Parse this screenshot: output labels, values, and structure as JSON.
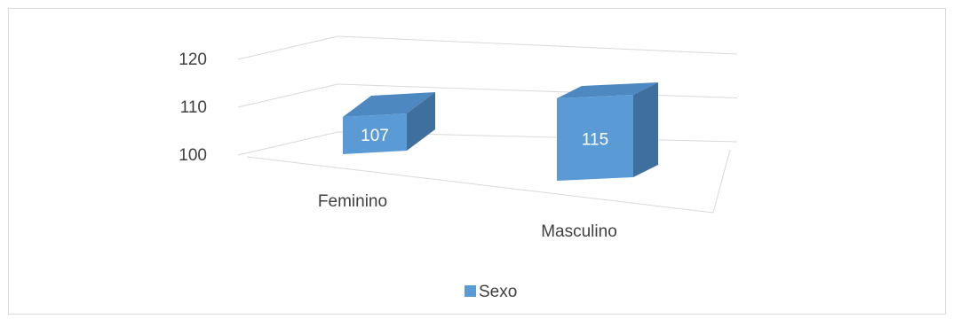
{
  "chart_data": {
    "type": "bar",
    "style": "3d-column",
    "categories": [
      "Feminino",
      "Masculino"
    ],
    "series": [
      {
        "name": "Sexo",
        "values": [
          107,
          115
        ],
        "color": "#5b9bd5"
      }
    ],
    "yticks": [
      "100",
      "110",
      "120"
    ],
    "ylim": [
      100,
      120
    ],
    "data_labels": [
      "107",
      "115"
    ],
    "grid": true,
    "legend_position": "bottom",
    "colors": {
      "front": "#5b9bd5",
      "top": "#4d88c0",
      "side": "#3f6f9c",
      "gridline": "#d9d9d9",
      "text": "#404040",
      "border": "#d9d9d9"
    }
  }
}
